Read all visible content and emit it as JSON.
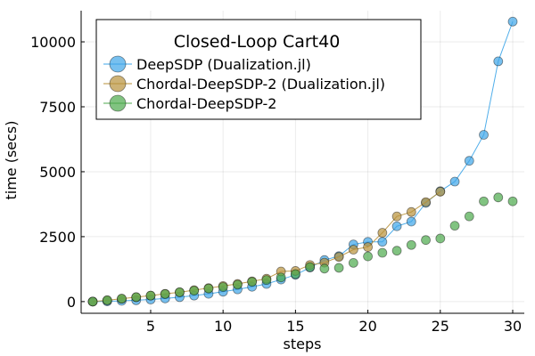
{
  "chart_data": {
    "type": "scatter",
    "legend_title": "Closed-Loop Cart40",
    "xlabel": "steps",
    "ylabel": "time (secs)",
    "xlim": [
      0.2,
      30.8
    ],
    "ylim": [
      -450,
      11200
    ],
    "xticks": [
      5,
      10,
      15,
      20,
      25,
      30
    ],
    "yticks": [
      0,
      2500,
      5000,
      7500,
      10000
    ],
    "grid": true,
    "legend_position": "top-left",
    "series": [
      {
        "name": "DeepSDP (Dualization.jl)",
        "color": "#3da5e8",
        "line": true,
        "x": [
          1,
          2,
          3,
          4,
          5,
          6,
          7,
          8,
          9,
          10,
          11,
          12,
          13,
          14,
          15,
          16,
          17,
          18,
          19,
          20,
          21,
          22,
          23,
          24,
          25,
          26,
          27,
          28,
          29,
          30
        ],
        "y": [
          0,
          10,
          30,
          50,
          80,
          120,
          170,
          230,
          300,
          380,
          470,
          570,
          680,
          850,
          1030,
          1310,
          1600,
          1750,
          2200,
          2300,
          2300,
          2900,
          3080,
          3800,
          4250,
          4620,
          5420,
          6420,
          9250,
          10780
        ]
      },
      {
        "name": "Chordal-DeepSDP-2 (Dualization.jl)",
        "color": "#b8913a",
        "line": true,
        "x": [
          1,
          2,
          3,
          4,
          5,
          6,
          7,
          8,
          9,
          10,
          11,
          12,
          13,
          14,
          15,
          16,
          17,
          18,
          19,
          20,
          21,
          22,
          23,
          24,
          25
        ],
        "y": [
          0,
          50,
          110,
          170,
          230,
          300,
          360,
          440,
          520,
          600,
          680,
          780,
          880,
          1160,
          1180,
          1410,
          1500,
          1720,
          2000,
          2100,
          2650,
          3280,
          3450,
          3830,
          4230
        ]
      },
      {
        "name": "Chordal-DeepSDP-2",
        "color": "#4caa4c",
        "line": false,
        "x": [
          1,
          2,
          3,
          4,
          5,
          6,
          7,
          8,
          9,
          10,
          11,
          12,
          13,
          14,
          15,
          16,
          17,
          18,
          19,
          20,
          21,
          22,
          23,
          24,
          25,
          26,
          27,
          28,
          29,
          30
        ],
        "y": [
          0,
          50,
          110,
          170,
          230,
          290,
          360,
          420,
          500,
          560,
          650,
          760,
          830,
          930,
          1060,
          1330,
          1270,
          1300,
          1490,
          1740,
          1880,
          1960,
          2180,
          2370,
          2430,
          2920,
          3280,
          3860,
          4010,
          3860
        ]
      }
    ]
  }
}
